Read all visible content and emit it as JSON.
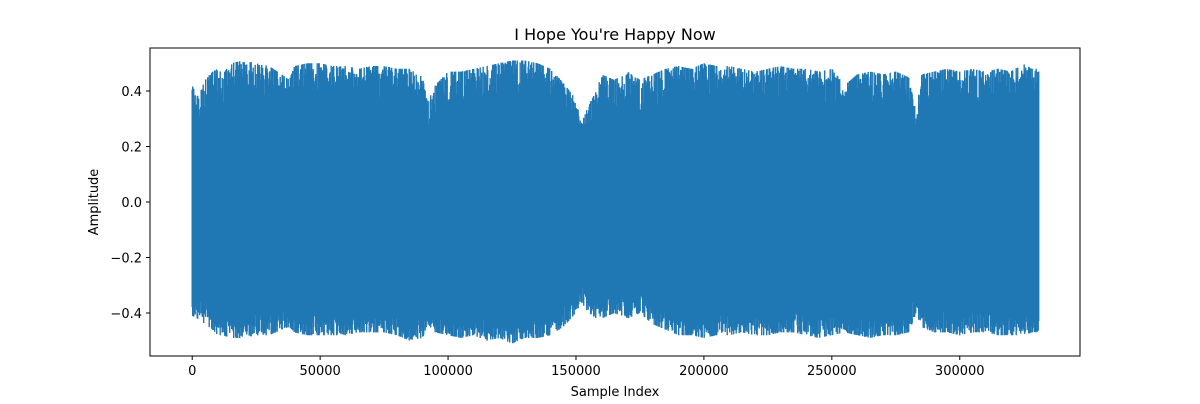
{
  "chart_data": {
    "type": "line",
    "title": "I Hope You're Happy Now",
    "xlabel": "Sample Index",
    "ylabel": "Amplitude",
    "xlim": [
      -16500,
      347000
    ],
    "ylim": [
      -0.555,
      0.555
    ],
    "x_ticks": [
      0,
      50000,
      100000,
      150000,
      200000,
      250000,
      300000
    ],
    "x_tick_labels": [
      "0",
      "50000",
      "100000",
      "150000",
      "200000",
      "250000",
      "300000"
    ],
    "y_ticks": [
      -0.4,
      -0.2,
      0.0,
      0.2,
      0.4
    ],
    "y_tick_labels": [
      "−0.4",
      "−0.2",
      "0.0",
      "0.2",
      "0.4"
    ],
    "grid": false,
    "series": [
      {
        "color": "#1f77b4",
        "sample_count": 331000,
        "envelope": {
          "x": [
            0,
            2000,
            5000,
            8000,
            10000,
            12000,
            15000,
            20000,
            25000,
            30000,
            35000,
            38000,
            40000,
            45000,
            50000,
            55000,
            60000,
            65000,
            70000,
            75000,
            80000,
            85000,
            90000,
            92000,
            95000,
            100000,
            105000,
            110000,
            115000,
            120000,
            125000,
            130000,
            135000,
            140000,
            145000,
            150000,
            152000,
            155000,
            158000,
            160000,
            165000,
            170000,
            175000,
            180000,
            185000,
            190000,
            195000,
            200000,
            205000,
            210000,
            215000,
            220000,
            225000,
            230000,
            235000,
            240000,
            245000,
            250000,
            255000,
            260000,
            265000,
            270000,
            275000,
            280000,
            283000,
            285000,
            290000,
            295000,
            300000,
            305000,
            310000,
            315000,
            320000,
            325000,
            328000,
            331000
          ],
          "upper": [
            0.42,
            0.38,
            0.44,
            0.47,
            0.48,
            0.46,
            0.5,
            0.51,
            0.5,
            0.49,
            0.46,
            0.44,
            0.49,
            0.5,
            0.5,
            0.49,
            0.49,
            0.48,
            0.49,
            0.49,
            0.48,
            0.48,
            0.45,
            0.36,
            0.42,
            0.47,
            0.47,
            0.48,
            0.49,
            0.5,
            0.51,
            0.51,
            0.5,
            0.48,
            0.43,
            0.37,
            0.28,
            0.35,
            0.4,
            0.46,
            0.44,
            0.47,
            0.44,
            0.46,
            0.48,
            0.49,
            0.48,
            0.5,
            0.49,
            0.49,
            0.48,
            0.47,
            0.48,
            0.49,
            0.48,
            0.48,
            0.47,
            0.48,
            0.42,
            0.46,
            0.47,
            0.46,
            0.47,
            0.45,
            0.32,
            0.46,
            0.47,
            0.48,
            0.47,
            0.48,
            0.47,
            0.48,
            0.47,
            0.5,
            0.48,
            0.48
          ],
          "lower": [
            -0.41,
            -0.42,
            -0.44,
            -0.46,
            -0.48,
            -0.48,
            -0.49,
            -0.49,
            -0.48,
            -0.48,
            -0.46,
            -0.45,
            -0.47,
            -0.48,
            -0.48,
            -0.48,
            -0.48,
            -0.47,
            -0.47,
            -0.47,
            -0.48,
            -0.5,
            -0.49,
            -0.44,
            -0.47,
            -0.48,
            -0.49,
            -0.48,
            -0.5,
            -0.49,
            -0.51,
            -0.49,
            -0.49,
            -0.48,
            -0.45,
            -0.4,
            -0.36,
            -0.4,
            -0.42,
            -0.42,
            -0.4,
            -0.42,
            -0.4,
            -0.44,
            -0.46,
            -0.48,
            -0.48,
            -0.49,
            -0.48,
            -0.48,
            -0.47,
            -0.48,
            -0.48,
            -0.47,
            -0.47,
            -0.48,
            -0.49,
            -0.48,
            -0.47,
            -0.48,
            -0.49,
            -0.48,
            -0.48,
            -0.47,
            -0.4,
            -0.45,
            -0.47,
            -0.47,
            -0.48,
            -0.47,
            -0.47,
            -0.48,
            -0.48,
            -0.48,
            -0.47,
            -0.47
          ]
        }
      }
    ]
  }
}
